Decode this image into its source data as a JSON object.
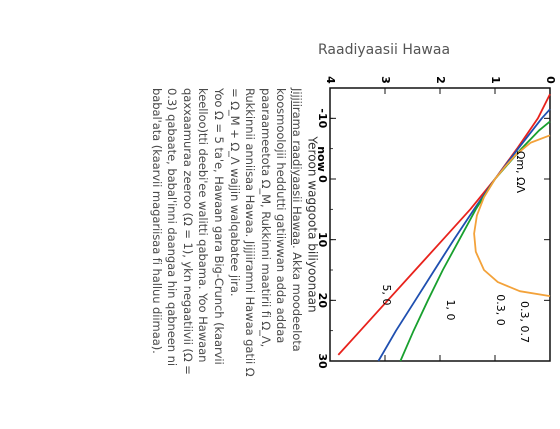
{
  "card": {
    "title": "Raadiyaasii Hawaa"
  },
  "description": {
    "heading_link": "Jijjiirama raadiyaasii Hawaa",
    "p1_rest": ". Akka moodeelota koosmoolojii heddutti gatiiwwan adda addaa paaraameetota Ω_M, Rukkinni maatirii fi Ω_Λ, Rukkinnii anniisaa Hawaa. Jijjiiramni Hawaa gatii Ω = Ω_M + Ω_Λ wajjin walqabatee jira.",
    "p2": "Yoo Ω = 5 ta'e, Hawaan gara Big-Crunch (kaarvii keelloo)tti deebi'ee walitti qabama. Yoo Hawaan qaxxaamuraa zeeroo (Ω = 1), ykn negaatiivii (Ω = 0.3) qabaate, babal'inni daangaa hin qabneen ni babal'ata (kaarvii magariisaa fi halluu diimaa)."
  },
  "chart_data": {
    "type": "line",
    "title": "",
    "xlabel": "Yeroon waggoota biliyoonaan",
    "ylabel": "",
    "xlim": [
      -15,
      30
    ],
    "ylim": [
      0,
      4
    ],
    "x_ticks": [
      "-10",
      "0",
      "10",
      "20",
      "30"
    ],
    "y_ticks": [
      "0",
      "1",
      "2",
      "3",
      "4"
    ],
    "now_label": "now",
    "legend_header": "Ωm, ΩΛ",
    "grid": false,
    "series": [
      {
        "name": "0.3, 0.7",
        "color": "#e8221c",
        "x": [
          -14,
          -10,
          -5,
          0,
          5,
          10,
          15,
          20,
          25,
          29
        ],
        "y": [
          0,
          0.22,
          0.6,
          1.0,
          1.45,
          1.95,
          2.45,
          2.95,
          3.45,
          3.85
        ]
      },
      {
        "name": "0.3, 0",
        "color": "#1f4fb0",
        "x": [
          -11.5,
          -10,
          -5,
          0,
          5,
          10,
          15,
          20,
          25,
          30
        ],
        "y": [
          0,
          0.15,
          0.58,
          1.0,
          1.38,
          1.75,
          2.1,
          2.45,
          2.8,
          3.12
        ]
      },
      {
        "name": "1, 0",
        "color": "#18a02e",
        "x": [
          -9.5,
          -8,
          -5,
          0,
          5,
          10,
          15,
          20,
          25,
          30
        ],
        "y": [
          0,
          0.2,
          0.52,
          1.0,
          1.35,
          1.65,
          1.95,
          2.22,
          2.48,
          2.72
        ]
      },
      {
        "name": "5, 0",
        "color": "#f3a23a",
        "x": [
          -7.2,
          -6,
          -4,
          -2,
          0,
          3,
          6,
          9,
          12,
          15,
          17,
          18.5,
          19.3
        ],
        "y": [
          0,
          0.35,
          0.62,
          0.82,
          1.0,
          1.2,
          1.33,
          1.38,
          1.35,
          1.2,
          0.95,
          0.55,
          0
        ]
      }
    ]
  }
}
